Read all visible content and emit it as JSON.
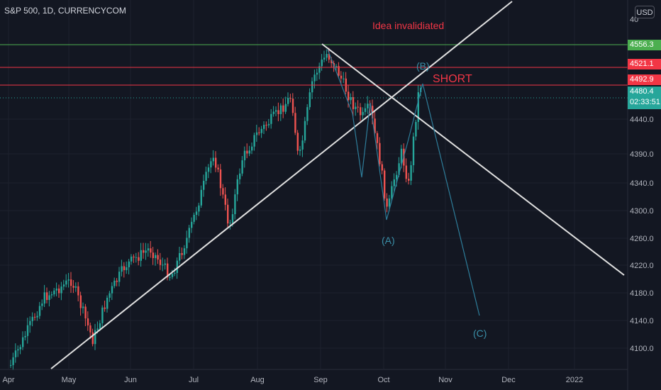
{
  "symbol_line": "S&P 500, 1D, CURRENCYCOM",
  "currency_button": "USD",
  "top_axis_clip": "40",
  "y_axis_labels": [
    "4440.0",
    "4390.0",
    "4340.0",
    "4300.0",
    "4260.0",
    "4220.0",
    "4180.0",
    "4140.0",
    "4100.0"
  ],
  "x_axis_labels": [
    "Apr",
    "May",
    "Jun",
    "Jul",
    "Aug",
    "Sep",
    "Oct",
    "Nov",
    "Dec",
    "2022"
  ],
  "level_tags": {
    "green": "4556.3",
    "red_top": "4521.1",
    "red_bottom": "4492.9"
  },
  "last_price": {
    "value": "4480.4",
    "countdown": "02:33:51"
  },
  "annotations": {
    "invalidated": "Idea invalidiated",
    "short": "SHORT",
    "wave_a": "(A)",
    "wave_b": "(B)",
    "wave_c": "(C)"
  },
  "colors": {
    "background": "#131722",
    "up": "#26a69a",
    "down": "#ef5350",
    "green_level": "#4caf50",
    "red_level": "#f23645",
    "wave": "#2e7d9a",
    "trendline": "#e0e0e0",
    "annotation_red": "#f23645",
    "annotation_blue": "#3a8fa8"
  },
  "chart_data": {
    "type": "candlestick",
    "symbol": "S&P 500",
    "interval": "1D",
    "y_range": [
      4060,
      4610
    ],
    "x_months": [
      "Apr",
      "May",
      "Jun",
      "Jul",
      "Aug",
      "Sep",
      "Oct",
      "Nov",
      "Dec",
      "2022"
    ],
    "levels": [
      4556.3,
      4521.1,
      4492.9
    ],
    "last_price": 4480.4,
    "waves": {
      "A": 4280,
      "B": 4495,
      "C": 4150
    }
  }
}
